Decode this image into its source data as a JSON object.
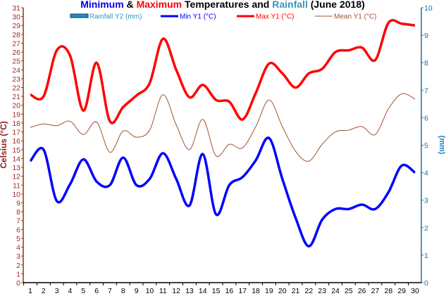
{
  "chart_data": {
    "type": "line",
    "title_parts": [
      {
        "text": "Minimum",
        "color": "#0000ee"
      },
      {
        "text": " & ",
        "color": "#000000"
      },
      {
        "text": "Maximum",
        "color": "#ff0000"
      },
      {
        "text": " Temperatures and ",
        "color": "#000000"
      },
      {
        "text": "Rainfall",
        "color": "#3399bb"
      },
      {
        "text": " (June 2018)",
        "color": "#000000"
      }
    ],
    "ylabel": "Celsius (°C)",
    "y2label": "(mm)",
    "ylim": [
      0,
      31
    ],
    "y2lim": [
      0,
      10
    ],
    "x": [
      1,
      2,
      3,
      4,
      5,
      6,
      7,
      8,
      9,
      10,
      11,
      12,
      13,
      14,
      15,
      16,
      17,
      18,
      19,
      20,
      21,
      22,
      23,
      24,
      25,
      26,
      27,
      28,
      29,
      30
    ],
    "legend_placement": "top",
    "series": [
      {
        "name": "Rainfall Y2 (mm)",
        "type": "bar",
        "axis": "y2",
        "color": "#1f8fc0",
        "values": [
          0,
          0,
          0,
          0,
          0,
          0,
          0,
          0,
          0,
          0,
          0,
          0,
          0,
          0,
          0,
          0,
          0,
          0,
          0,
          0,
          0,
          0,
          0,
          0,
          0,
          0,
          0,
          0,
          0,
          0
        ]
      },
      {
        "name": "Min Y1 (°C)",
        "type": "line",
        "axis": "y1",
        "color": "#0000ff",
        "values": [
          13.7,
          15.0,
          9.2,
          11.1,
          13.9,
          11.4,
          11.0,
          14.1,
          11.0,
          11.7,
          14.6,
          11.7,
          8.7,
          14.5,
          7.7,
          11.0,
          11.9,
          13.8,
          16.3,
          11.7,
          7.3,
          4.1,
          7.1,
          8.3,
          8.3,
          8.8,
          8.3,
          10.2,
          13.2,
          12.4
        ]
      },
      {
        "name": "Max Y1 (°C)",
        "type": "line",
        "axis": "y1",
        "color": "#ff0000",
        "values": [
          21.2,
          21.0,
          26.2,
          25.6,
          19.4,
          24.8,
          18.2,
          19.8,
          21.1,
          22.5,
          27.5,
          24.0,
          20.9,
          22.3,
          20.6,
          20.4,
          18.4,
          21.4,
          24.7,
          23.6,
          22.0,
          23.6,
          24.1,
          26.0,
          26.2,
          26.5,
          25.1,
          29.3,
          29.2,
          29.0
        ]
      },
      {
        "name": "Mean Y1 (°C)",
        "type": "line",
        "axis": "y1",
        "color": "#a0522d",
        "values": [
          17.5,
          17.9,
          17.7,
          18.2,
          16.7,
          18.1,
          14.7,
          17.1,
          16.4,
          17.2,
          21.2,
          17.8,
          15.0,
          18.4,
          14.3,
          15.6,
          15.2,
          17.6,
          20.6,
          17.6,
          14.8,
          13.7,
          15.6,
          17.0,
          17.2,
          17.6,
          16.7,
          19.6,
          21.3,
          20.7
        ]
      }
    ],
    "colors": {
      "left_axis": "#993300",
      "left_label": "#8b1a1a",
      "right_axis": "#1f6f9f",
      "right_label": "#1f7fbf"
    }
  }
}
